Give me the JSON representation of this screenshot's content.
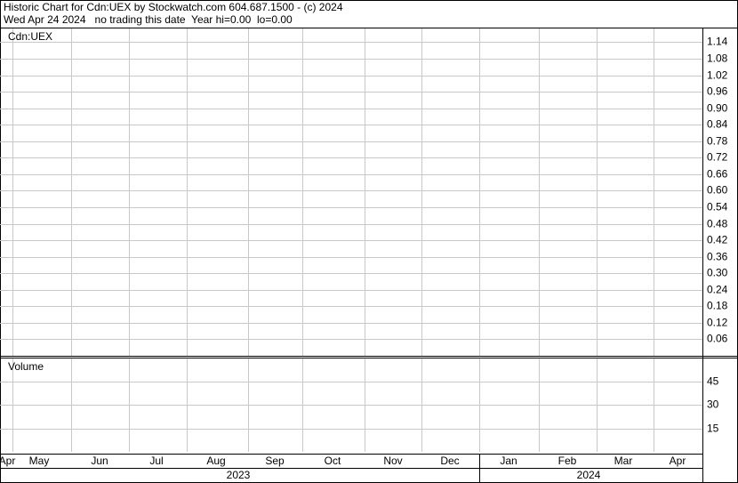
{
  "chart_data": [
    {
      "type": "line",
      "title": "Historic Chart for Cdn:UEX by Stockwatch.com 604.687.1500 - (c) 2024",
      "subtitle": "Wed Apr 24 2024   no trading this date  Year hi=0.00  lo=0.00",
      "label": "Cdn:UEX",
      "series": [],
      "ylim": [
        0,
        1.19
      ],
      "yticks": [
        0.06,
        0.12,
        0.18,
        0.24,
        {
          "value": 0.3,
          "label": "0.30"
        },
        0.36,
        0.42,
        0.48,
        0.54,
        {
          "value": 0.6,
          "label": "0.60"
        },
        0.66,
        0.72,
        0.78,
        0.84,
        {
          "value": 0.9,
          "label": "0.90"
        },
        0.96,
        1.02,
        1.08,
        1.14
      ],
      "grid": true
    },
    {
      "type": "bar",
      "label": "Volume",
      "series": [],
      "ylim": [
        0,
        60
      ],
      "yticks": [
        15,
        30,
        45
      ],
      "grid": true,
      "categories": [
        "Apr",
        "May",
        "Jun",
        "Jul",
        "Aug",
        "Sep",
        "Oct",
        "Nov",
        "Dec",
        "Jan",
        "Feb",
        "Mar",
        "Apr"
      ],
      "years": [
        "2023",
        "2024"
      ]
    }
  ]
}
